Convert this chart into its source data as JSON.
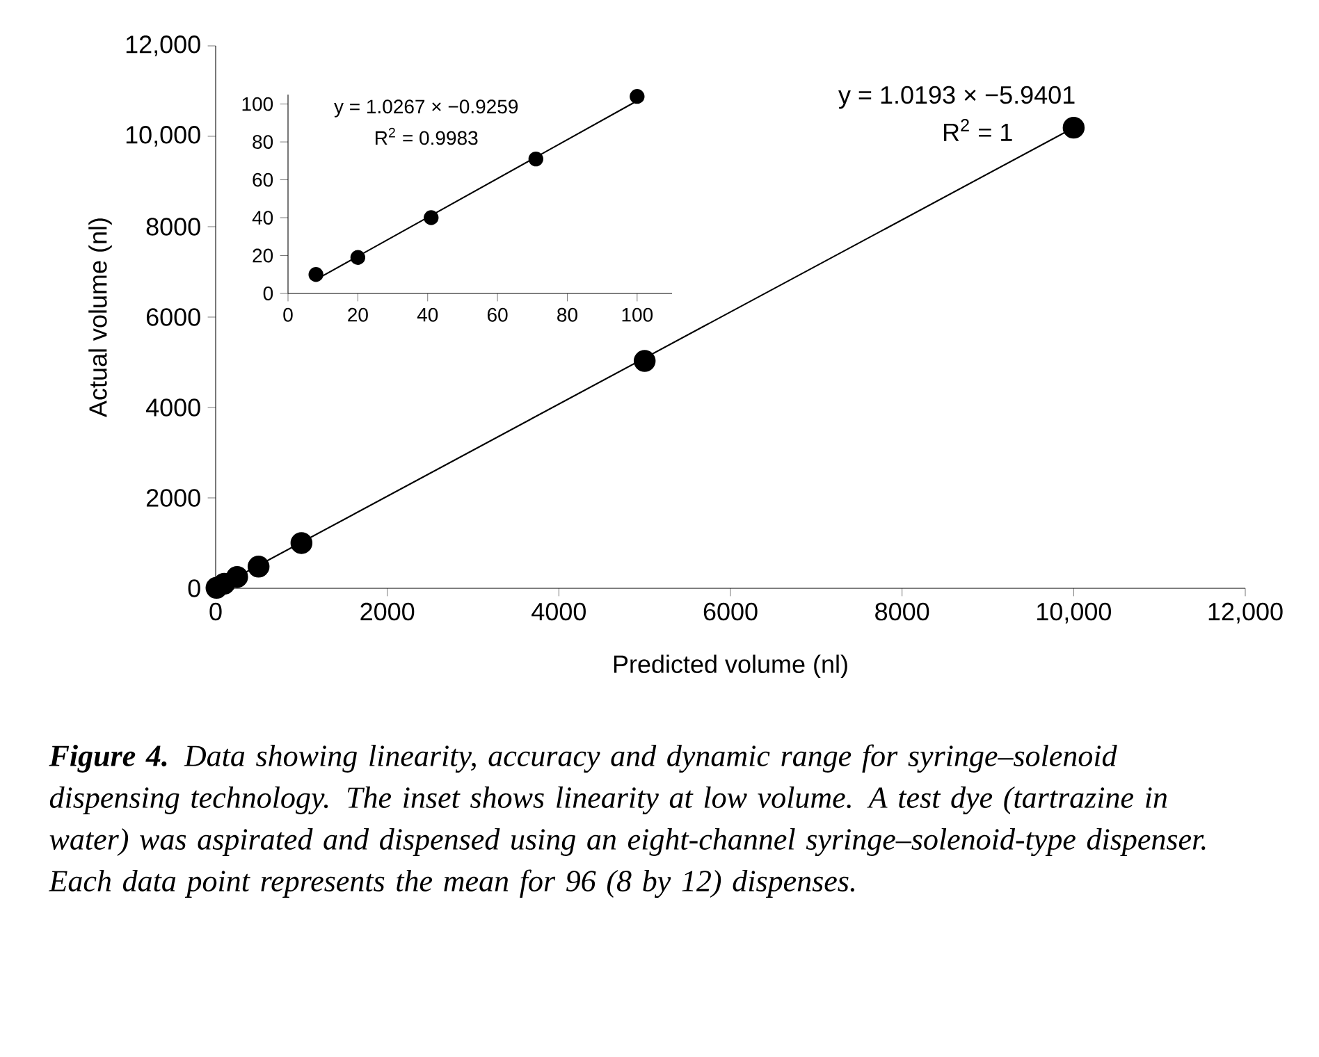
{
  "chart_data": [
    {
      "type": "scatter",
      "xlabel": "Predicted volume (nl)",
      "ylabel": "Actual volume (nl)",
      "xlim": [
        0,
        12000
      ],
      "ylim": [
        0,
        12000
      ],
      "xticks": [
        0,
        2000,
        4000,
        6000,
        8000,
        {
          "value": 10000,
          "label": "10,000"
        },
        {
          "value": 12000,
          "label": "12,000"
        }
      ],
      "yticks": [
        0,
        2000,
        4000,
        6000,
        8000,
        {
          "value": 10000,
          "label": "10,000"
        },
        {
          "value": 12000,
          "label": "12,000"
        }
      ],
      "series": [
        {
          "marker": "circle",
          "color": "#000000",
          "x": [
            10,
            100,
            250,
            500,
            1000,
            5000,
            10000
          ],
          "values": [
            10,
            100,
            250,
            480,
            1000,
            5030,
            10190
          ]
        },
        {
          "type": "line",
          "marker": "none",
          "color": "#000000",
          "x": [
            100,
            10000
          ],
          "values": [
            100,
            10190
          ]
        }
      ],
      "annotations": [
        "y = 1.0193 × −5.9401",
        "R$^{2}$ = 1",
        "**Figure 4.** Data showing linearity, accuracy and dynamic range for syringe–solenoid dispensing technology. The inset shows linearity at low volume. A test dye (tartrazine in water) was aspirated and dispensed using an eight-channel syringe–solenoid-type dispenser. Each data point represents the mean for 96 (8 by 12) dispenses."
      ]
    },
    {
      "type": "scatter",
      "xlim": [
        0,
        110
      ],
      "ylim": [
        0,
        105
      ],
      "xticks": [
        0,
        20,
        40,
        60,
        80,
        100
      ],
      "yticks": [
        0,
        20,
        40,
        60,
        80,
        100
      ],
      "series": [
        {
          "marker": "circle",
          "color": "#000000",
          "x": [
            8,
            20,
            41,
            71,
            100
          ],
          "values": [
            10,
            19,
            40,
            71,
            104
          ]
        },
        {
          "type": "line",
          "marker": "none",
          "color": "#000000",
          "x": [
            8,
            100
          ],
          "values": [
            7.3,
            101.7
          ]
        }
      ],
      "annotations": [
        "y = 1.0267 × −0.9259",
        "R$^{2}$ = 0.9983"
      ]
    }
  ]
}
